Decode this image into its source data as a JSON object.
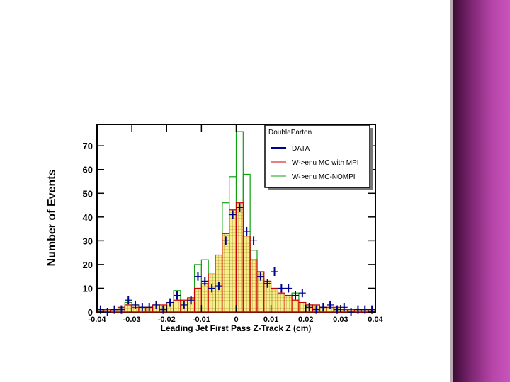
{
  "chart_data": {
    "type": "histogram",
    "x_label": "Leading Jet First Pass Z-Track Z (cm)",
    "y_label": "Number of Events",
    "legend_title": "DoubleParton",
    "legend_position": "upper right",
    "bins": [
      -0.04,
      -0.038,
      -0.036,
      -0.034,
      -0.032,
      -0.03,
      -0.028,
      -0.026,
      -0.024,
      -0.022,
      -0.02,
      -0.018,
      -0.016,
      -0.014,
      -0.012,
      -0.01,
      -0.008,
      -0.006,
      -0.004,
      -0.002,
      0,
      0.002,
      0.004,
      0.006,
      0.008,
      0.01,
      0.012,
      0.014,
      0.016,
      0.018,
      0.02,
      0.022,
      0.024,
      0.026,
      0.028,
      0.03,
      0.032,
      0.034,
      0.036,
      0.038,
      0.04
    ],
    "xlim": [
      -0.04,
      0.04
    ],
    "xticks": [
      -0.04,
      -0.03,
      -0.02,
      -0.01,
      0,
      0.01,
      0.02,
      0.03,
      0.04
    ],
    "ylim": [
      0,
      79
    ],
    "yticks": [
      0,
      10,
      20,
      30,
      40,
      50,
      60,
      70
    ],
    "series": [
      {
        "name": "DATA",
        "style": "points",
        "color": "#00008b",
        "values": [
          1,
          0,
          1,
          1,
          5,
          3,
          2,
          2,
          3,
          1,
          4,
          7,
          3,
          5,
          15,
          13,
          10,
          11,
          30,
          41,
          44,
          34,
          30,
          15,
          12,
          17,
          10,
          10,
          7,
          8,
          2,
          1,
          2,
          3,
          1,
          2,
          0,
          1,
          1,
          1
        ]
      },
      {
        "name": "W->enu MC with MPI",
        "style": "filled",
        "color": "#cc0000",
        "fill_color": "#f5f08a",
        "values": [
          1,
          1,
          1,
          2,
          3,
          2,
          2,
          2,
          3,
          3,
          4,
          5,
          5,
          6,
          10,
          12,
          16,
          24,
          33,
          43,
          46,
          32,
          22,
          17,
          13,
          10,
          8,
          7,
          5,
          4,
          3,
          3,
          2,
          2,
          2,
          1,
          1,
          1,
          1,
          1
        ]
      },
      {
        "name": "W->enu MC-NOMPI",
        "style": "outline",
        "color": "#10a010",
        "values": [
          1,
          1,
          1,
          1,
          4,
          3,
          2,
          2,
          2,
          2,
          3,
          9,
          5,
          4,
          20,
          22,
          15,
          11,
          46,
          57,
          76,
          58,
          26,
          14,
          10,
          8,
          6,
          5,
          8,
          4,
          3,
          2,
          2,
          1,
          1,
          1,
          1,
          1,
          0,
          0
        ]
      }
    ]
  }
}
